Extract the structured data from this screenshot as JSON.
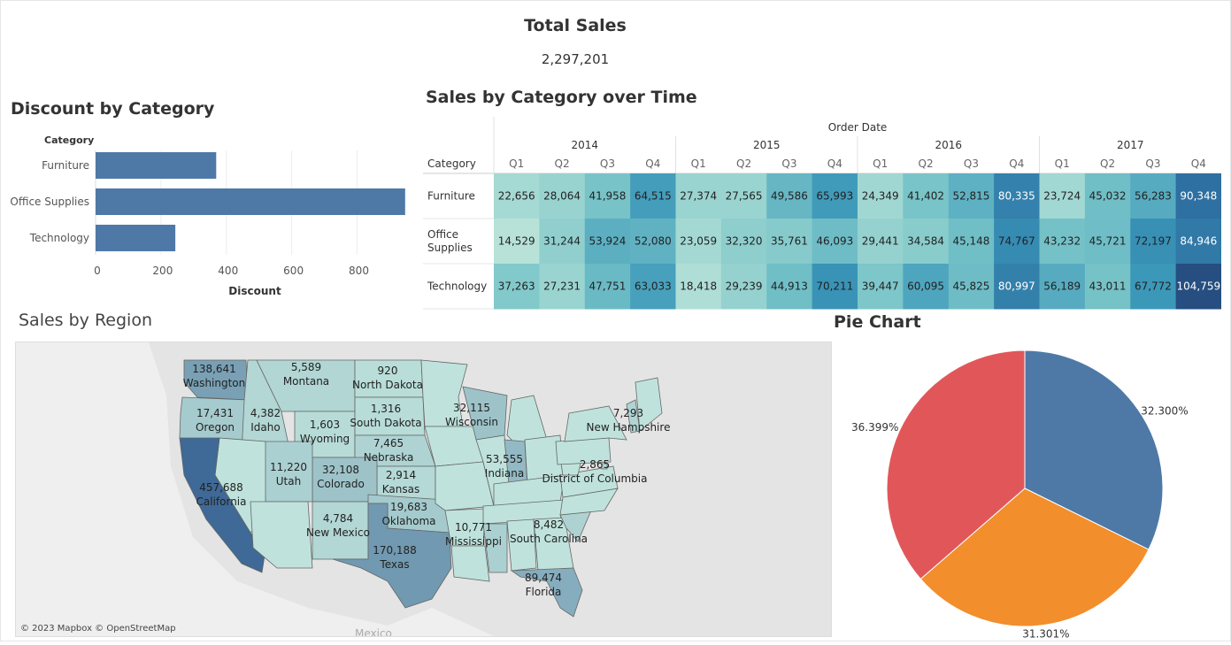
{
  "kpi": {
    "title": "Total Sales",
    "value": "2,297,201"
  },
  "colors": {
    "bar": "#4e79a7",
    "pie": [
      "#4e79a7",
      "#f28e2b",
      "#e15759"
    ],
    "heat_low": "#b8e2d8",
    "heat_high": "#2a5a8c"
  },
  "chart_data": [
    {
      "id": "discount",
      "type": "bar",
      "orientation": "horizontal",
      "title": "Discount by Category",
      "category_header": "Category",
      "categories": [
        "Furniture",
        "Office Supplies",
        "Technology"
      ],
      "values": [
        369,
        947,
        244
      ],
      "xlabel": "Discount",
      "xlim": [
        0,
        980
      ],
      "ticks": [
        "0",
        "200",
        "400",
        "600",
        "800"
      ],
      "tick_values": [
        0,
        200,
        400,
        600,
        800
      ],
      "grid": true
    },
    {
      "id": "heatmap",
      "type": "heatmap",
      "title": "Sales by Category over Time",
      "column_header": "Order Date",
      "row_header": "Category",
      "years": [
        "2014",
        "2015",
        "2016",
        "2017"
      ],
      "quarters": [
        "Q1",
        "Q2",
        "Q3",
        "Q4"
      ],
      "rows": [
        {
          "label": "Furniture",
          "values": [
            "22,656",
            "28,064",
            "41,958",
            "64,515",
            "27,374",
            "27,565",
            "49,586",
            "65,993",
            "24,349",
            "41,402",
            "52,815",
            "80,335",
            "23,724",
            "45,032",
            "56,283",
            "90,348"
          ]
        },
        {
          "label": "Office Supplies",
          "label_lines": [
            "Office",
            "Supplies"
          ],
          "values": [
            "14,529",
            "31,244",
            "53,924",
            "52,080",
            "23,059",
            "32,320",
            "35,761",
            "46,093",
            "29,441",
            "34,584",
            "45,148",
            "74,767",
            "43,232",
            "45,721",
            "72,197",
            "84,946"
          ]
        },
        {
          "label": "Technology",
          "values": [
            "37,263",
            "27,231",
            "47,751",
            "63,033",
            "18,418",
            "29,239",
            "44,913",
            "70,211",
            "39,447",
            "60,095",
            "45,825",
            "80,997",
            "56,189",
            "43,011",
            "67,772",
            "104,759"
          ]
        }
      ]
    },
    {
      "id": "region",
      "type": "map",
      "title": "Sales by Region",
      "credit": "© 2023 Mapbox © OpenStreetMap",
      "extra_label": "Mexico",
      "states": [
        {
          "name": "Washington",
          "value": "138,641"
        },
        {
          "name": "Oregon",
          "value": "17,431"
        },
        {
          "name": "Idaho",
          "value": "4,382"
        },
        {
          "name": "Montana",
          "value": "5,589"
        },
        {
          "name": "Wyoming",
          "value": "1,603"
        },
        {
          "name": "North Dakota",
          "value": "920"
        },
        {
          "name": "South Dakota",
          "value": "1,316"
        },
        {
          "name": "Nebraska",
          "value": "7,465"
        },
        {
          "name": "Kansas",
          "value": "2,914"
        },
        {
          "name": "Colorado",
          "value": "32,108"
        },
        {
          "name": "Utah",
          "value": "11,220"
        },
        {
          "name": "California",
          "value": "457,688"
        },
        {
          "name": "New Mexico",
          "value": "4,784"
        },
        {
          "name": "Oklahoma",
          "value": "19,683"
        },
        {
          "name": "Texas",
          "value": "170,188"
        },
        {
          "name": "Wisconsin",
          "value": "32,115"
        },
        {
          "name": "Indiana",
          "value": "53,555"
        },
        {
          "name": "Mississippi",
          "value": "10,771"
        },
        {
          "name": "South Carolina",
          "value": "8,482"
        },
        {
          "name": "Florida",
          "value": "89,474"
        },
        {
          "name": "District of Columbia",
          "value": "2,865"
        },
        {
          "name": "New Hampshire",
          "value": "7,293"
        }
      ]
    },
    {
      "id": "pie",
      "type": "pie",
      "title": "Pie Chart",
      "slices": [
        {
          "value": 32.3,
          "label": "32.300%"
        },
        {
          "value": 31.301,
          "label": "31.301%"
        },
        {
          "value": 36.399,
          "label": "36.399%"
        }
      ]
    }
  ]
}
